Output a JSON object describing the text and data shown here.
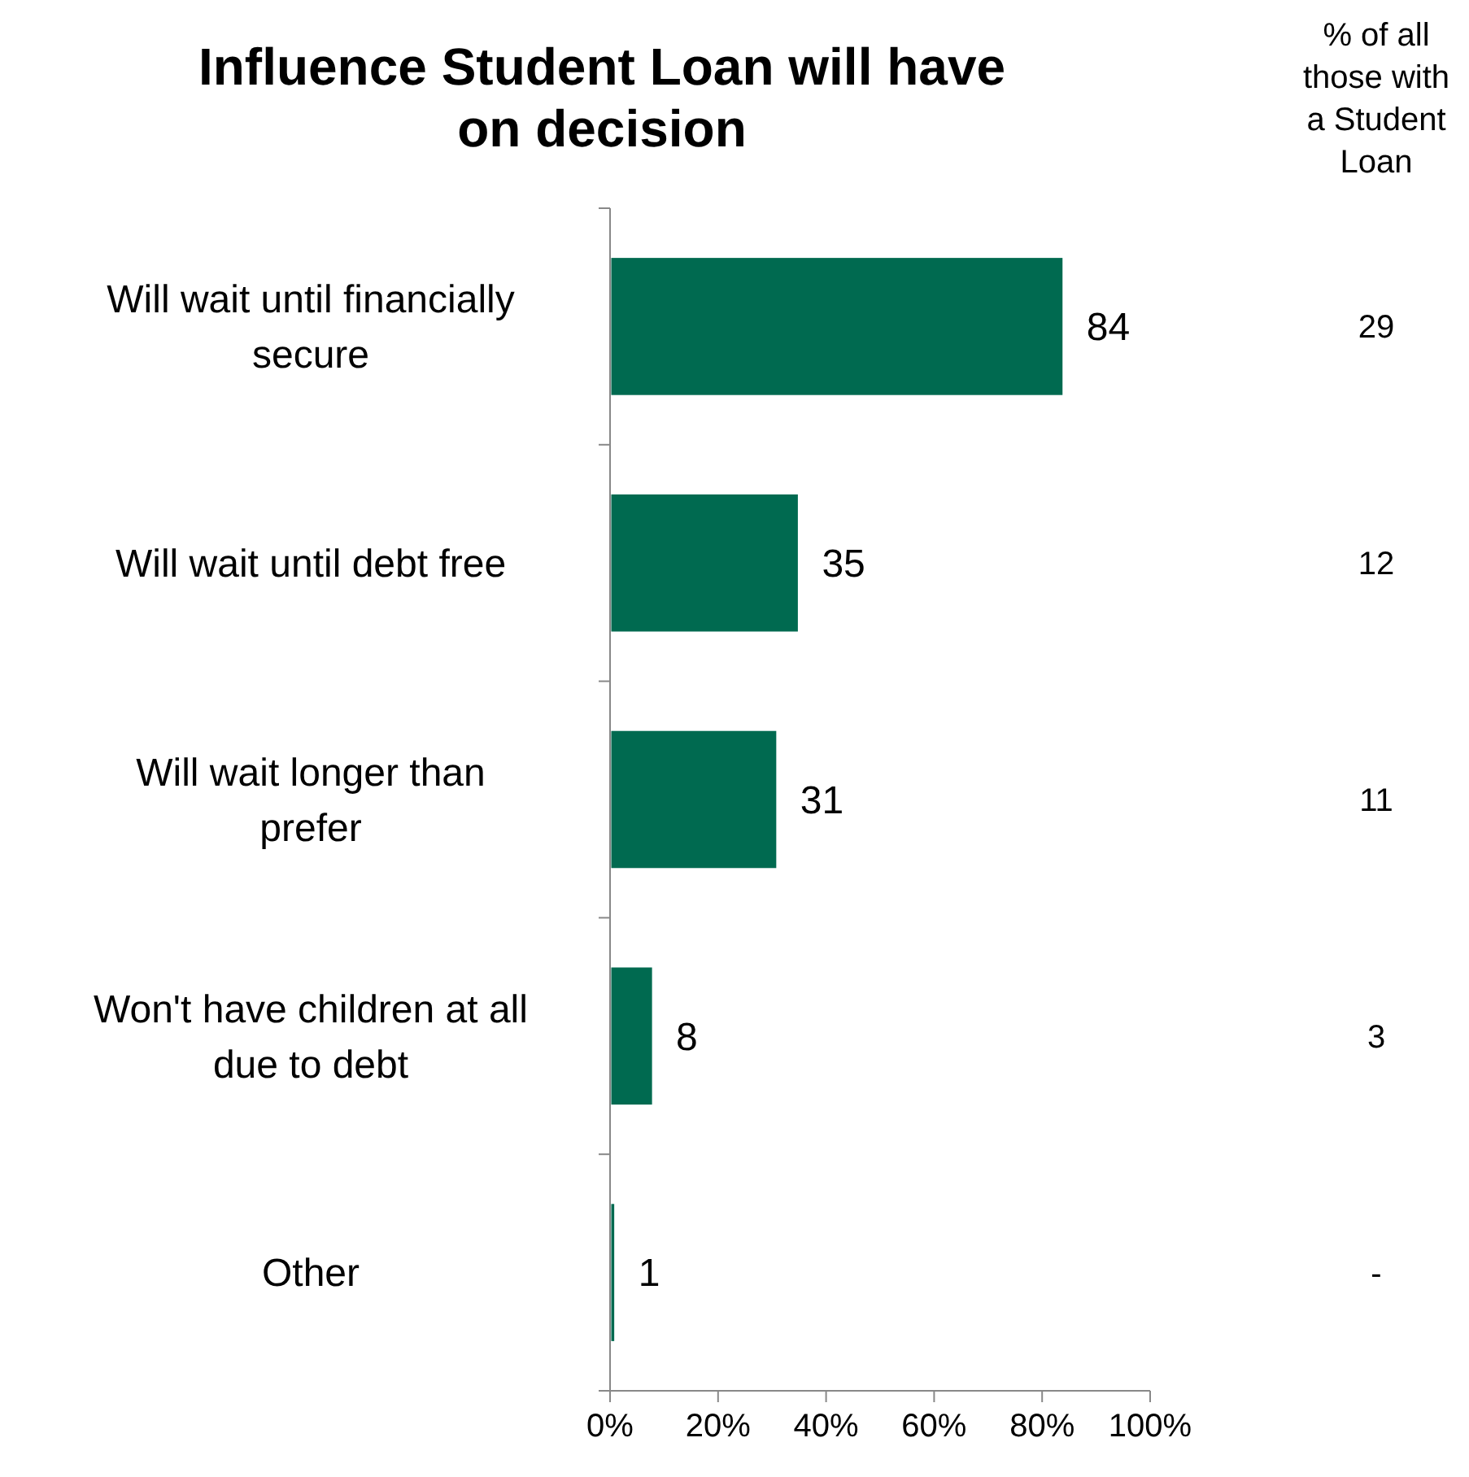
{
  "chart_data": {
    "type": "bar",
    "orientation": "horizontal",
    "title": "Influence Student Loan will have on decision",
    "categories": [
      "Will wait until financially secure",
      "Will wait until debt free",
      "Will wait longer than prefer",
      "Won't have children at all due to debt",
      "Other"
    ],
    "values": [
      84,
      35,
      31,
      8,
      1
    ],
    "color": "#006a50",
    "data_labels": true,
    "xlim": [
      0,
      100
    ],
    "xticks": [
      {
        "value": 0,
        "label": "0%"
      },
      {
        "value": 20,
        "label": "20%"
      },
      {
        "value": 40,
        "label": "40%"
      },
      {
        "value": 60,
        "label": "60%"
      },
      {
        "value": 80,
        "label": "80%"
      },
      {
        "value": 100,
        "label": "100%"
      }
    ],
    "grid": false,
    "annotations": [
      "% of all those with a Student Loan",
      "29",
      "12",
      "11",
      "3",
      "-"
    ]
  }
}
